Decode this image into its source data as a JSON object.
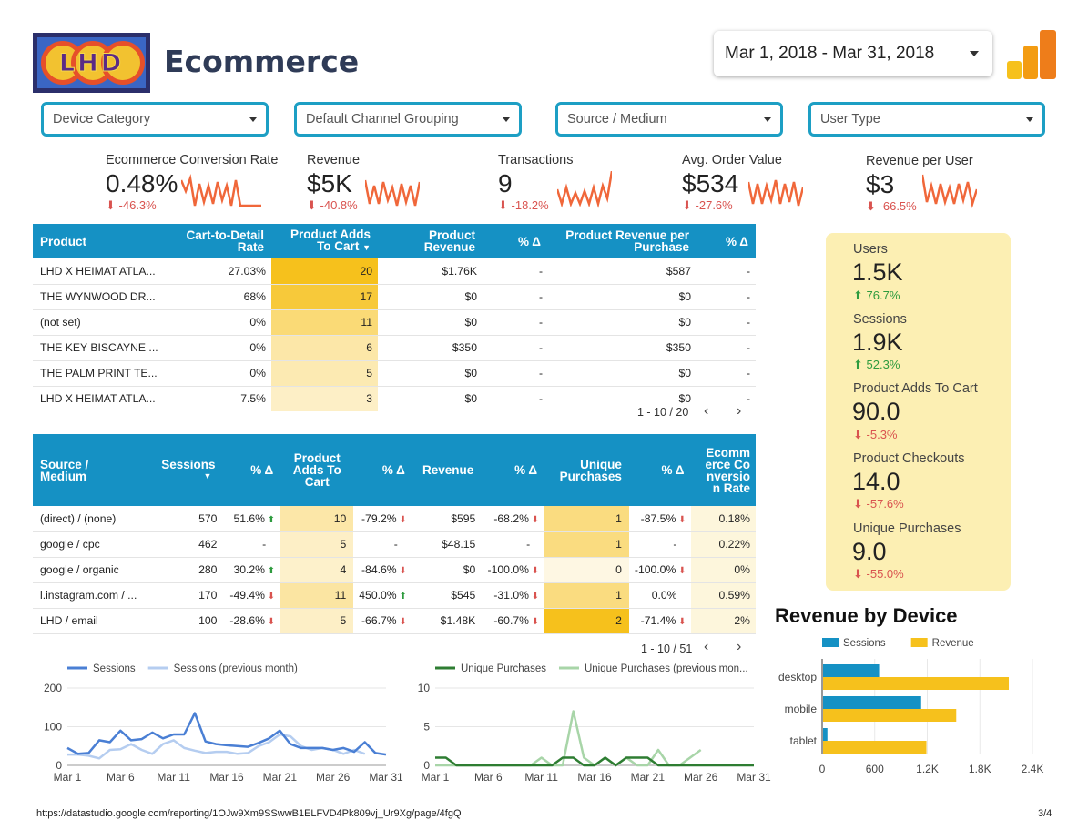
{
  "header": {
    "logo_text": "LHD",
    "title": "Ecommerce",
    "date_range": "Mar 1, 2018 - Mar 31, 2018"
  },
  "filters": [
    {
      "label": "Device Category"
    },
    {
      "label": "Default Channel Grouping"
    },
    {
      "label": "Source / Medium"
    },
    {
      "label": "User Type"
    }
  ],
  "kpis": [
    {
      "label": "Ecommerce Conversion Rate",
      "value": "0.48%",
      "delta": "-46.3%"
    },
    {
      "label": "Revenue",
      "value": "$5K",
      "delta": "-40.8%"
    },
    {
      "label": "Transactions",
      "value": "9",
      "delta": "-18.2%"
    },
    {
      "label": "Avg. Order Value",
      "value": "$534",
      "delta": "-27.6%"
    },
    {
      "label": "Revenue per User",
      "value": "$3",
      "delta": "-66.5%"
    }
  ],
  "product_table": {
    "headers": [
      "Product",
      "Cart-to-Detail Rate",
      "Product Adds To Cart",
      "Product Revenue",
      "% Δ",
      "Product Revenue per Purchase",
      "% Δ"
    ],
    "rows": [
      {
        "product": "LHD X HEIMAT ATLA...",
        "cart_rate": "27.03%",
        "adds": "20",
        "adds_frac": 1.0,
        "revenue": "$1.76K",
        "d1": "-",
        "rpp": "$587",
        "d2": "-"
      },
      {
        "product": "THE WYNWOOD DR...",
        "cart_rate": "68%",
        "adds": "17",
        "adds_frac": 0.85,
        "revenue": "$0",
        "d1": "-",
        "rpp": "$0",
        "d2": "-"
      },
      {
        "product": "(not set)",
        "cart_rate": "0%",
        "adds": "11",
        "adds_frac": 0.55,
        "revenue": "$0",
        "d1": "-",
        "rpp": "$0",
        "d2": "-"
      },
      {
        "product": "THE KEY BISCAYNE ...",
        "cart_rate": "0%",
        "adds": "6",
        "adds_frac": 0.3,
        "revenue": "$350",
        "d1": "-",
        "rpp": "$350",
        "d2": "-"
      },
      {
        "product": "THE PALM PRINT TE...",
        "cart_rate": "0%",
        "adds": "5",
        "adds_frac": 0.25,
        "revenue": "$0",
        "d1": "-",
        "rpp": "$0",
        "d2": "-"
      },
      {
        "product": "LHD X HEIMAT ATLA...",
        "cart_rate": "7.5%",
        "adds": "3",
        "adds_frac": 0.15,
        "revenue": "$0",
        "d1": "-",
        "rpp": "$0",
        "d2": "-"
      }
    ],
    "pager": "1 - 10 / 20"
  },
  "source_table": {
    "headers": [
      "Source / Medium",
      "Sessions",
      "% Δ",
      "Product Adds To Cart",
      "% Δ",
      "Revenue",
      "% Δ",
      "Unique Purchases",
      "% Δ",
      "Ecommerce Conversion Rate"
    ],
    "rows": [
      {
        "source": "(direct) / (none)",
        "sessions": "570",
        "sd": "51.6%",
        "sdir": "up",
        "adds": "10",
        "adds_frac": 0.3,
        "ad": "-79.2%",
        "adir": "dn",
        "revenue": "$595",
        "rd": "-68.2%",
        "rdir": "dn",
        "up": "1",
        "up_frac": 0.5,
        "ud": "-87.5%",
        "udir": "dn",
        "ecr": "0.18%"
      },
      {
        "source": "google / cpc",
        "sessions": "462",
        "sd": "-",
        "sdir": "",
        "adds": "5",
        "adds_frac": 0.15,
        "ad": "-",
        "adir": "",
        "revenue": "$48.15",
        "rd": "-",
        "rdir": "",
        "up": "1",
        "up_frac": 0.5,
        "ud": "-",
        "udir": "",
        "ecr": "0.22%"
      },
      {
        "source": "google / organic",
        "sessions": "280",
        "sd": "30.2%",
        "sdir": "up",
        "adds": "4",
        "adds_frac": 0.12,
        "ad": "-84.6%",
        "adir": "dn",
        "revenue": "$0",
        "rd": "-100.0%",
        "rdir": "dn",
        "up": "0",
        "up_frac": 0.0,
        "ud": "-100.0%",
        "udir": "dn",
        "ecr": "0%"
      },
      {
        "source": "l.instagram.com / ...",
        "sessions": "170",
        "sd": "-49.4%",
        "sdir": "dn",
        "adds": "11",
        "adds_frac": 0.33,
        "ad": "450.0%",
        "adir": "up",
        "revenue": "$545",
        "rd": "-31.0%",
        "rdir": "dn",
        "up": "1",
        "up_frac": 0.5,
        "ud": "0.0%",
        "udir": "",
        "ecr": "0.59%"
      },
      {
        "source": "LHD / email",
        "sessions": "100",
        "sd": "-28.6%",
        "sdir": "dn",
        "adds": "5",
        "adds_frac": 0.15,
        "ad": "-66.7%",
        "adir": "dn",
        "revenue": "$1.48K",
        "rd": "-60.7%",
        "rdir": "dn",
        "up": "2",
        "up_frac": 1.0,
        "ud": "-71.4%",
        "udir": "dn",
        "ecr": "2%"
      }
    ],
    "pager": "1 - 10 / 51"
  },
  "summary": [
    {
      "label": "Users",
      "value": "1.5K",
      "delta": "76.7%",
      "dir": "up"
    },
    {
      "label": "Sessions",
      "value": "1.9K",
      "delta": "52.3%",
      "dir": "up"
    },
    {
      "label": "Product Adds To Cart",
      "value": "90.0",
      "delta": "-5.3%",
      "dir": "dn"
    },
    {
      "label": "Product Checkouts",
      "value": "14.0",
      "delta": "-57.6%",
      "dir": "dn"
    },
    {
      "label": "Unique Purchases",
      "value": "9.0",
      "delta": "-55.0%",
      "dir": "dn"
    }
  ],
  "colors": {
    "accent": "#1591c4",
    "sparkline": "#f0673a",
    "bar_sessions": "#1591c4",
    "bar_revenue": "#f6c11c",
    "summary_bg": "#fcefb3",
    "heat": "#f6c11c"
  },
  "footer": {
    "url": "https://datastudio.google.com/reporting/1OJw9Xm9SSwwB1ELFVD4Pk809vj_Ur9Xg/page/4fgQ",
    "page": "3/4"
  },
  "chart_data": [
    {
      "type": "line",
      "series": [
        {
          "name": "Sessions",
          "values": [
            45,
            30,
            32,
            65,
            60,
            90,
            65,
            68,
            85,
            70,
            80,
            80,
            135,
            62,
            55,
            52,
            50,
            48,
            58,
            70,
            90,
            55,
            45,
            45,
            45,
            40,
            45,
            35,
            60,
            32,
            28
          ]
        },
        {
          "name": "Sessions (previous month)",
          "values": [
            28,
            28,
            25,
            18,
            40,
            42,
            55,
            40,
            30,
            55,
            65,
            45,
            38,
            32,
            35,
            35,
            30,
            32,
            50,
            60,
            80,
            75,
            50,
            40,
            45,
            40,
            30,
            40,
            30,
            null,
            null
          ]
        }
      ],
      "x_ticks": [
        "Mar 1",
        "Mar 6",
        "Mar 11",
        "Mar 16",
        "Mar 21",
        "Mar 26",
        "Mar 31"
      ],
      "ylim": [
        0,
        200
      ],
      "y_ticks": [
        0,
        100,
        200
      ]
    },
    {
      "type": "line",
      "series": [
        {
          "name": "Unique Purchases",
          "values": [
            1,
            1,
            0,
            0,
            0,
            0,
            0,
            0,
            0,
            0,
            0,
            0,
            1,
            1,
            0,
            0,
            1,
            0,
            1,
            1,
            1,
            0,
            0,
            0,
            0,
            0,
            0,
            0,
            0,
            0,
            0
          ]
        },
        {
          "name": "Unique Purchases (previous mon...",
          "values": [
            0,
            0,
            0,
            0,
            0,
            0,
            0,
            0,
            0,
            0,
            1,
            0,
            0,
            7,
            1,
            0,
            1,
            0,
            1,
            0,
            0,
            2,
            0,
            0,
            1,
            2,
            null,
            null,
            null,
            null,
            null
          ]
        }
      ],
      "x_ticks": [
        "Mar 1",
        "Mar 6",
        "Mar 11",
        "Mar 16",
        "Mar 21",
        "Mar 26",
        "Mar 31"
      ],
      "ylim": [
        0,
        10
      ],
      "y_ticks": [
        0,
        5,
        10
      ]
    },
    {
      "type": "bar",
      "title": "Revenue by Device",
      "orientation": "horizontal",
      "categories": [
        "desktop",
        "mobile",
        "tablet"
      ],
      "series": [
        {
          "name": "Sessions",
          "values": [
            650,
            1130,
            60
          ]
        },
        {
          "name": "Revenue",
          "values": [
            2130,
            1530,
            1190
          ]
        }
      ],
      "xlim": [
        0,
        2400
      ],
      "x_ticks": [
        "0",
        "600",
        "1.2K",
        "1.8K",
        "2.4K"
      ]
    }
  ]
}
